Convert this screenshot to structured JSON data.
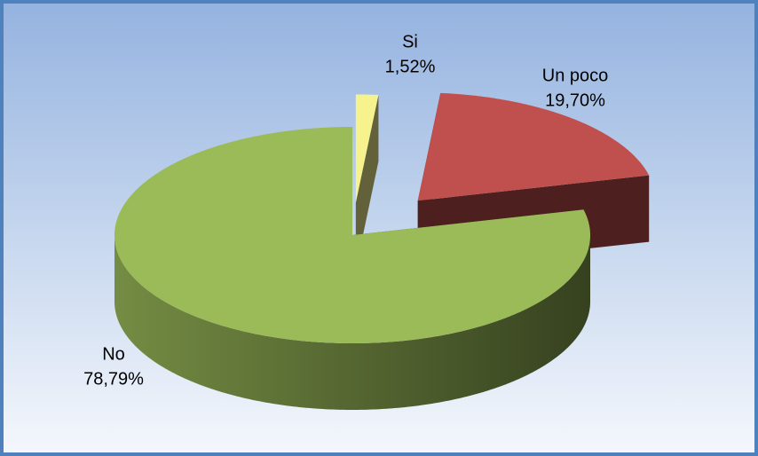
{
  "chart_data": {
    "type": "pie3d",
    "categories": [
      "Si",
      "Un poco",
      "No"
    ],
    "values": [
      1.52,
      19.7,
      78.79
    ],
    "value_labels": [
      "1,52%",
      "19,70%",
      "78,79%"
    ],
    "colors": [
      "#f6f38e",
      "#c0504d",
      "#9bbb59"
    ]
  }
}
